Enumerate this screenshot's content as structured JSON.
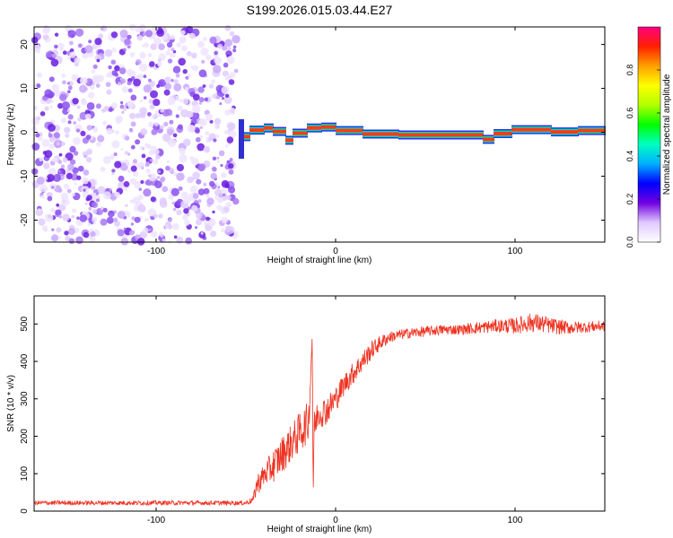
{
  "title": "S199.2026.015.03.44.E27",
  "chart_data": [
    {
      "type": "heatmap",
      "name": "spectrogram",
      "xlabel": "Height of straight line (km)",
      "ylabel": "Frequency (Hz)",
      "xlim": [
        -168,
        150
      ],
      "ylim": [
        -25,
        24
      ],
      "xticks": [
        -100,
        0,
        100
      ],
      "yticks": [
        -20,
        -10,
        0,
        10,
        20
      ],
      "noise_region_x": [
        -168,
        -55
      ],
      "line_segments": [
        {
          "x0": -53,
          "x1": -48,
          "freq": -1
        },
        {
          "x0": -48,
          "x1": -40,
          "freq": 0.5
        },
        {
          "x0": -40,
          "x1": -35,
          "freq": 1
        },
        {
          "x0": -35,
          "x1": -28,
          "freq": 0.2
        },
        {
          "x0": -28,
          "x1": -24,
          "freq": -1.8
        },
        {
          "x0": -24,
          "x1": -16,
          "freq": -0.2
        },
        {
          "x0": -16,
          "x1": -8,
          "freq": 1
        },
        {
          "x0": -8,
          "x1": 0,
          "freq": 1.2
        },
        {
          "x0": 0,
          "x1": 15,
          "freq": 0.4
        },
        {
          "x0": 15,
          "x1": 35,
          "freq": -0.4
        },
        {
          "x0": 35,
          "x1": 82,
          "freq": -0.6
        },
        {
          "x0": 82,
          "x1": 88,
          "freq": -1.6
        },
        {
          "x0": 88,
          "x1": 98,
          "freq": -0.3
        },
        {
          "x0": 98,
          "x1": 120,
          "freq": 0.6
        },
        {
          "x0": 120,
          "x1": 135,
          "freq": 0.1
        },
        {
          "x0": 135,
          "x1": 150,
          "freq": 0.4
        }
      ]
    },
    {
      "type": "colorbar",
      "name": "colorbar",
      "label": "Normalized spectral amplitude",
      "range": [
        0,
        1
      ],
      "ticks": [
        "0.0",
        "0.2",
        "0.4",
        "0.6",
        "0.8"
      ],
      "colors": [
        "#ffffff",
        "#e0c8ff",
        "#7000e0",
        "#0000ff",
        "#00b0ff",
        "#00ffc0",
        "#00ff00",
        "#b0ff00",
        "#ffff00",
        "#ffa000",
        "#ff2000",
        "#ff0080"
      ]
    },
    {
      "type": "line",
      "name": "snr",
      "xlabel": "Height of straight line (km)",
      "ylabel": "SNR (10 * v/v)",
      "xlim": [
        -168,
        150
      ],
      "ylim": [
        0,
        575
      ],
      "xticks": [
        -100,
        0,
        100
      ],
      "yticks": [
        0,
        100,
        200,
        300,
        400,
        500
      ],
      "series": [
        {
          "name": "SNR",
          "color": "#ee3322",
          "x": [
            -168,
            -150,
            -120,
            -90,
            -60,
            -50,
            -46,
            -44,
            -40,
            -35,
            -30,
            -25,
            -20,
            -15,
            -13,
            -12.5,
            -12,
            -10,
            -5,
            0,
            5,
            10,
            15,
            20,
            25,
            30,
            40,
            50,
            60,
            70,
            80,
            90,
            100,
            110,
            120,
            130,
            140,
            150
          ],
          "y": [
            22,
            22,
            22,
            22,
            22,
            22,
            30,
            70,
            95,
            120,
            150,
            180,
            210,
            240,
            470,
            30,
            220,
            260,
            270,
            300,
            340,
            370,
            400,
            430,
            450,
            465,
            475,
            480,
            485,
            485,
            490,
            495,
            495,
            505,
            495,
            490,
            492,
            495
          ],
          "noise": [
            6,
            6,
            6,
            6,
            6,
            6,
            10,
            30,
            30,
            45,
            50,
            50,
            55,
            55,
            10,
            10,
            45,
            40,
            40,
            35,
            30,
            30,
            28,
            25,
            20,
            15,
            14,
            14,
            14,
            14,
            16,
            18,
            22,
            26,
            22,
            18,
            15,
            15
          ]
        }
      ]
    }
  ]
}
